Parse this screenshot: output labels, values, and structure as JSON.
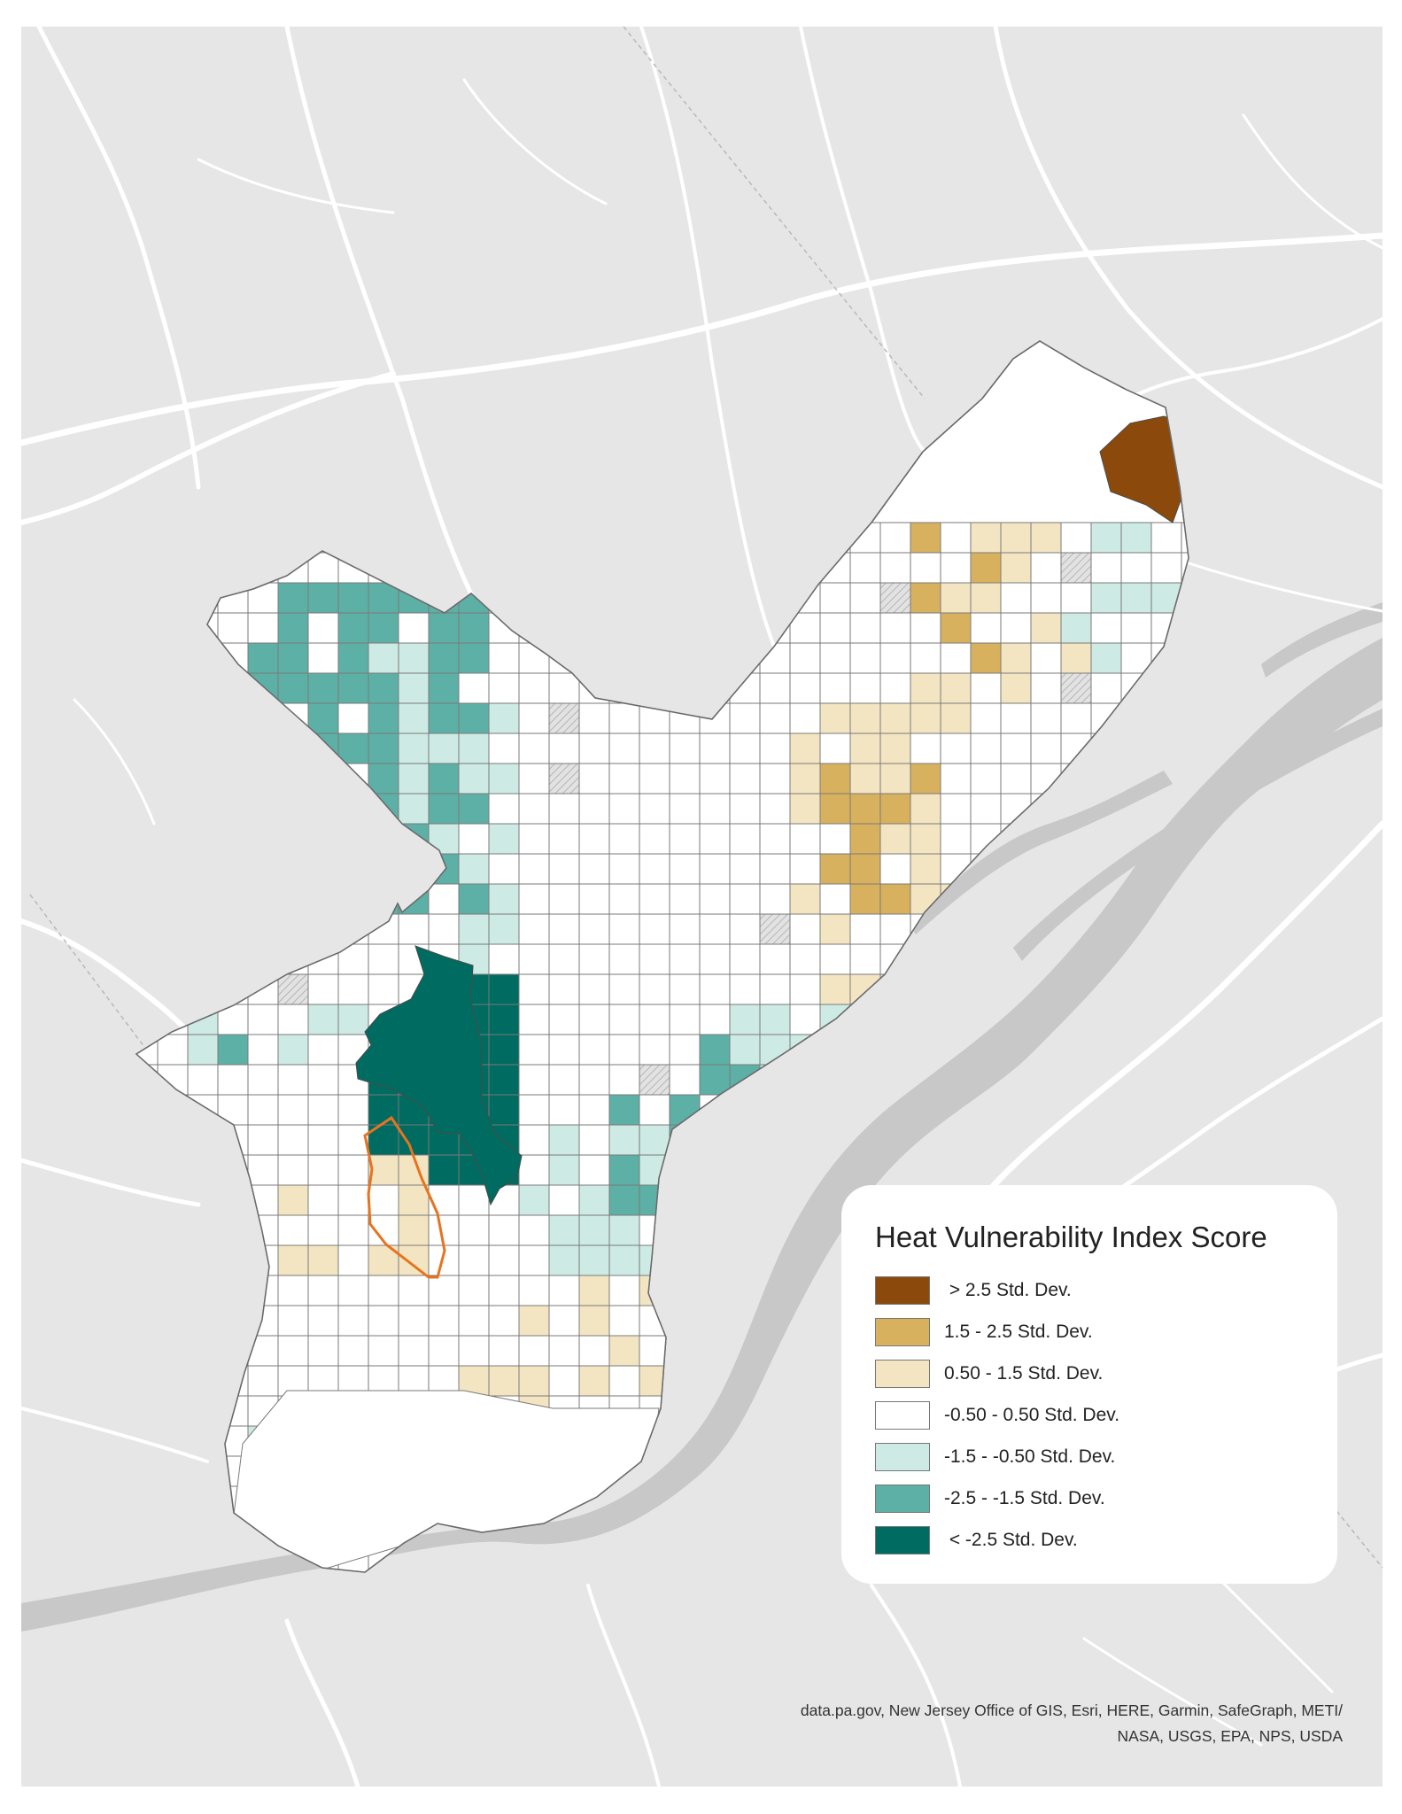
{
  "legend": {
    "title": "Heat Vulnerability Index Score",
    "classes": [
      {
        "label": " > 2.5 Std. Dev.",
        "color": "#8b4a0b"
      },
      {
        "label": "1.5 - 2.5 Std. Dev.",
        "color": "#d8b15f"
      },
      {
        "label": "0.50 - 1.5 Std. Dev.",
        "color": "#f4e5c2"
      },
      {
        "label": "-0.50 - 0.50 Std. Dev.",
        "color": "#ffffff"
      },
      {
        "label": "-1.5 - -0.50 Std. Dev.",
        "color": "#cdebe4"
      },
      {
        "label": "-2.5 - -1.5 Std. Dev.",
        "color": "#5db0a6"
      },
      {
        "label": " < -2.5 Std. Dev.",
        "color": "#006b60"
      }
    ]
  },
  "attribution": {
    "line1": "data.pa.gov, New Jersey Office of GIS, Esri, HERE, Garmin, SafeGraph, METI/",
    "line2": "NASA, USGS, EPA, NPS, USDA"
  },
  "colors": {
    "basemap": "#e6e6e6",
    "water": "#c8c8c8",
    "road": "#ffffff",
    "highlight_outline": "#e8731e",
    "no_data": "#d6d6d6"
  }
}
